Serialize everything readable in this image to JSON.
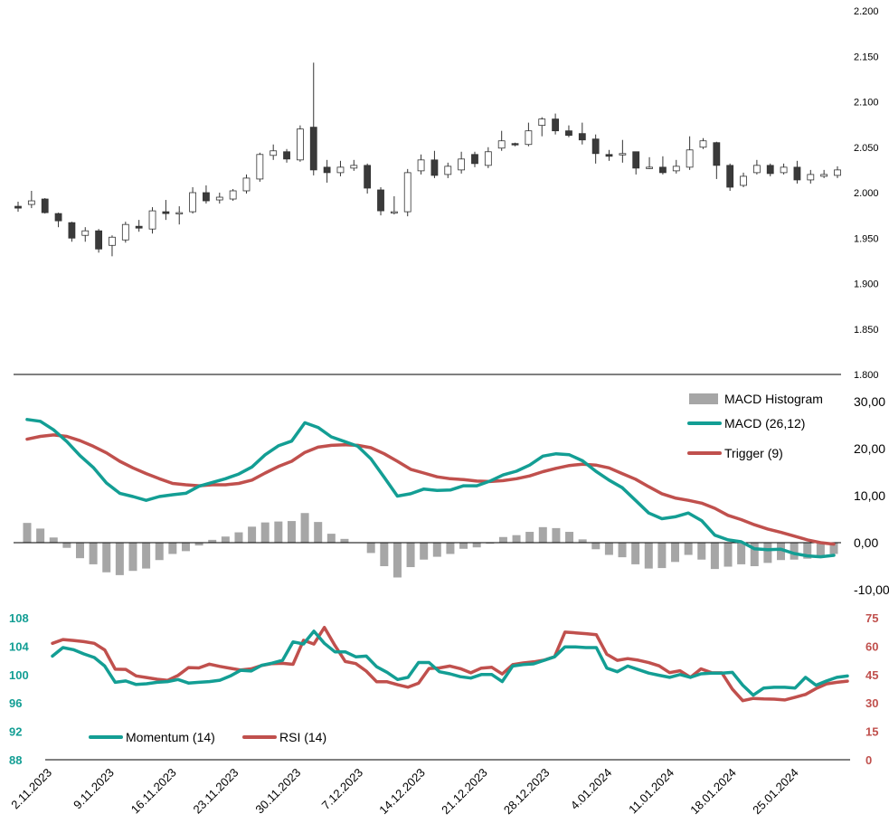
{
  "chart_data": [
    {
      "type": "candlestick",
      "yticks": [
        "1.800",
        "1.850",
        "1.900",
        "1.950",
        "2.000",
        "2.050",
        "2.100",
        "2.150",
        "2.200"
      ],
      "ylim": [
        1.8,
        2.2
      ],
      "candles": [
        {
          "o": 1.985,
          "h": 1.99,
          "l": 1.979,
          "c": 1.983
        },
        {
          "o": 1.987,
          "h": 2.002,
          "l": 1.983,
          "c": 1.991
        },
        {
          "o": 1.993,
          "h": 1.994,
          "l": 1.977,
          "c": 1.978
        },
        {
          "o": 1.977,
          "h": 1.978,
          "l": 1.962,
          "c": 1.969
        },
        {
          "o": 1.967,
          "h": 1.968,
          "l": 1.946,
          "c": 1.95
        },
        {
          "o": 1.953,
          "h": 1.962,
          "l": 1.946,
          "c": 1.958
        },
        {
          "o": 1.958,
          "h": 1.96,
          "l": 1.934,
          "c": 1.938
        },
        {
          "o": 1.942,
          "h": 1.953,
          "l": 1.93,
          "c": 1.951
        },
        {
          "o": 1.948,
          "h": 1.968,
          "l": 1.945,
          "c": 1.965
        },
        {
          "o": 1.963,
          "h": 1.97,
          "l": 1.957,
          "c": 1.961
        },
        {
          "o": 1.96,
          "h": 1.984,
          "l": 1.955,
          "c": 1.98
        },
        {
          "o": 1.979,
          "h": 1.992,
          "l": 1.97,
          "c": 1.977
        },
        {
          "o": 1.977,
          "h": 1.985,
          "l": 1.965,
          "c": 1.978
        },
        {
          "o": 1.979,
          "h": 2.006,
          "l": 1.977,
          "c": 2.0
        },
        {
          "o": 2.0,
          "h": 2.008,
          "l": 1.988,
          "c": 1.991
        },
        {
          "o": 1.992,
          "h": 2.0,
          "l": 1.988,
          "c": 1.995
        },
        {
          "o": 1.993,
          "h": 2.004,
          "l": 1.991,
          "c": 2.002
        },
        {
          "o": 2.002,
          "h": 2.02,
          "l": 1.999,
          "c": 2.016
        },
        {
          "o": 2.015,
          "h": 2.044,
          "l": 2.012,
          "c": 2.042
        },
        {
          "o": 2.041,
          "h": 2.053,
          "l": 2.036,
          "c": 2.046
        },
        {
          "o": 2.045,
          "h": 2.048,
          "l": 2.033,
          "c": 2.037
        },
        {
          "o": 2.036,
          "h": 2.074,
          "l": 2.034,
          "c": 2.07
        },
        {
          "o": 2.072,
          "h": 2.143,
          "l": 2.019,
          "c": 2.025
        },
        {
          "o": 2.028,
          "h": 2.036,
          "l": 2.011,
          "c": 2.022
        },
        {
          "o": 2.022,
          "h": 2.035,
          "l": 2.018,
          "c": 2.028
        },
        {
          "o": 2.027,
          "h": 2.036,
          "l": 2.024,
          "c": 2.03
        },
        {
          "o": 2.03,
          "h": 2.032,
          "l": 1.999,
          "c": 2.005
        },
        {
          "o": 2.003,
          "h": 2.006,
          "l": 1.975,
          "c": 1.98
        },
        {
          "o": 1.978,
          "h": 1.996,
          "l": 1.976,
          "c": 1.979
        },
        {
          "o": 1.979,
          "h": 2.026,
          "l": 1.974,
          "c": 2.022
        },
        {
          "o": 2.024,
          "h": 2.042,
          "l": 2.02,
          "c": 2.036
        },
        {
          "o": 2.036,
          "h": 2.046,
          "l": 2.016,
          "c": 2.019
        },
        {
          "o": 2.02,
          "h": 2.033,
          "l": 2.016,
          "c": 2.029
        },
        {
          "o": 2.025,
          "h": 2.045,
          "l": 2.021,
          "c": 2.037
        },
        {
          "o": 2.042,
          "h": 2.045,
          "l": 2.028,
          "c": 2.032
        },
        {
          "o": 2.03,
          "h": 2.05,
          "l": 2.027,
          "c": 2.045
        },
        {
          "o": 2.049,
          "h": 2.068,
          "l": 2.046,
          "c": 2.057
        },
        {
          "o": 2.054,
          "h": 2.055,
          "l": 2.051,
          "c": 2.053
        },
        {
          "o": 2.053,
          "h": 2.077,
          "l": 2.051,
          "c": 2.068
        },
        {
          "o": 2.074,
          "h": 2.083,
          "l": 2.062,
          "c": 2.081
        },
        {
          "o": 2.081,
          "h": 2.087,
          "l": 2.064,
          "c": 2.068
        },
        {
          "o": 2.068,
          "h": 2.074,
          "l": 2.061,
          "c": 2.063
        },
        {
          "o": 2.065,
          "h": 2.077,
          "l": 2.053,
          "c": 2.058
        },
        {
          "o": 2.059,
          "h": 2.064,
          "l": 2.032,
          "c": 2.043
        },
        {
          "o": 2.042,
          "h": 2.047,
          "l": 2.035,
          "c": 2.04
        },
        {
          "o": 2.042,
          "h": 2.058,
          "l": 2.033,
          "c": 2.043
        },
        {
          "o": 2.045,
          "h": 2.045,
          "l": 2.02,
          "c": 2.027
        },
        {
          "o": 2.028,
          "h": 2.039,
          "l": 2.026,
          "c": 2.028
        },
        {
          "o": 2.028,
          "h": 2.04,
          "l": 2.02,
          "c": 2.022
        },
        {
          "o": 2.024,
          "h": 2.036,
          "l": 2.021,
          "c": 2.029
        },
        {
          "o": 2.028,
          "h": 2.062,
          "l": 2.025,
          "c": 2.047
        },
        {
          "o": 2.05,
          "h": 2.06,
          "l": 2.048,
          "c": 2.057
        },
        {
          "o": 2.055,
          "h": 2.056,
          "l": 2.015,
          "c": 2.03
        },
        {
          "o": 2.03,
          "h": 2.032,
          "l": 2.002,
          "c": 2.006
        },
        {
          "o": 2.008,
          "h": 2.022,
          "l": 2.006,
          "c": 2.018
        },
        {
          "o": 2.022,
          "h": 2.036,
          "l": 2.02,
          "c": 2.03
        },
        {
          "o": 2.03,
          "h": 2.032,
          "l": 2.018,
          "c": 2.021
        },
        {
          "o": 2.022,
          "h": 2.032,
          "l": 2.02,
          "c": 2.028
        },
        {
          "o": 2.028,
          "h": 2.035,
          "l": 2.01,
          "c": 2.014
        },
        {
          "o": 2.014,
          "h": 2.025,
          "l": 2.01,
          "c": 2.02
        },
        {
          "o": 2.018,
          "h": 2.025,
          "l": 2.016,
          "c": 2.02
        },
        {
          "o": 2.019,
          "h": 2.029,
          "l": 2.016,
          "c": 2.025
        }
      ]
    },
    {
      "type": "macd",
      "yticks": [
        "-10,00",
        "0,00",
        "10,00",
        "20,00",
        "30,00"
      ],
      "ylim": [
        -10,
        30
      ],
      "legend": [
        "MACD Histogram",
        "MACD (26,12)",
        "Trigger (9)"
      ],
      "macd": [
        26.2,
        25.8,
        24.0,
        21.5,
        18.5,
        16.0,
        12.7,
        10.5,
        9.8,
        9.0,
        9.8,
        10.2,
        10.5,
        12.0,
        12.8,
        13.6,
        14.6,
        16.1,
        18.7,
        20.6,
        21.6,
        25.5,
        24.5,
        22.5,
        21.5,
        20.5,
        17.8,
        13.9,
        9.9,
        10.4,
        11.4,
        11.1,
        11.2,
        12.1,
        12.1,
        13.1,
        14.4,
        15.2,
        16.5,
        18.4,
        18.9,
        18.7,
        17.4,
        15.2,
        13.3,
        11.7,
        9.0,
        6.3,
        5.1,
        5.5,
        6.3,
        4.7,
        1.6,
        0.6,
        0.2,
        -1.3,
        -1.5,
        -1.4,
        -2.3,
        -2.8,
        -3.0,
        -2.7
      ],
      "trigger": [
        22.0,
        22.6,
        22.9,
        22.6,
        21.7,
        20.5,
        19.1,
        17.3,
        15.9,
        14.7,
        13.6,
        12.6,
        12.3,
        12.1,
        12.3,
        12.3,
        12.6,
        13.3,
        14.8,
        16.2,
        17.3,
        19.2,
        20.3,
        20.7,
        20.8,
        20.7,
        20.2,
        18.9,
        17.3,
        15.6,
        14.8,
        14.0,
        13.6,
        13.4,
        13.1,
        13.0,
        13.2,
        13.6,
        14.2,
        15.1,
        15.8,
        16.4,
        16.7,
        16.5,
        15.9,
        14.7,
        13.5,
        11.9,
        10.4,
        9.5,
        9.0,
        8.4,
        7.3,
        5.8,
        4.9,
        3.8,
        2.9,
        2.2,
        1.4,
        0.6,
        0.0,
        -0.3
      ],
      "histogram": [
        4.2,
        3.0,
        1.1,
        -1.1,
        -3.3,
        -4.6,
        -6.3,
        -6.9,
        -6.0,
        -5.5,
        -3.7,
        -2.4,
        -1.8,
        -0.6,
        0.6,
        1.3,
        2.2,
        3.4,
        4.3,
        4.5,
        4.6,
        6.3,
        4.4,
        1.9,
        0.8,
        0.0,
        -2.2,
        -5.0,
        -7.4,
        -5.2,
        -3.6,
        -3.0,
        -2.4,
        -1.3,
        -1.0,
        -0.2,
        1.2,
        1.6,
        2.3,
        3.3,
        3.1,
        2.3,
        0.7,
        -1.4,
        -2.6,
        -3.1,
        -4.6,
        -5.5,
        -5.4,
        -4.1,
        -2.6,
        -3.6,
        -5.6,
        -5.1,
        -4.6,
        -5.0,
        -4.3,
        -3.7,
        -3.6,
        -3.4,
        -3.0,
        -2.4
      ]
    },
    {
      "type": "line",
      "y_left_ticks": [
        "88",
        "92",
        "96",
        "100",
        "104",
        "108"
      ],
      "ylim_left": [
        88,
        108
      ],
      "y_right_ticks": [
        "0",
        "15",
        "30",
        "45",
        "60",
        "75"
      ],
      "ylim_right": [
        0,
        75
      ],
      "legend": [
        "Momentum (14)",
        "RSI (14)"
      ],
      "x_labels": [
        "2.11.2023",
        "9.11.2023",
        "16.11.2023",
        "23.11.2023",
        "30.11.2023",
        "7.12.2023",
        "14.12.2023",
        "21.12.2023",
        "28.12.2023",
        "4.01.2024",
        "11.01.2024",
        "18.01.2024",
        "25.01.2024"
      ],
      "momentum": [
        102.6,
        103.8,
        103.5,
        102.9,
        102.4,
        101.2,
        98.9,
        99.1,
        98.6,
        98.7,
        98.9,
        99.0,
        99.3,
        98.8,
        98.9,
        99.0,
        99.2,
        99.8,
        100.6,
        100.5,
        101.3,
        101.6,
        102.0,
        104.6,
        104.3,
        106.1,
        104.4,
        103.2,
        103.2,
        102.5,
        102.6,
        101.1,
        100.3,
        99.3,
        99.6,
        101.7,
        101.7,
        100.4,
        100.1,
        99.7,
        99.5,
        100.0,
        100.0,
        99.0,
        101.2,
        101.4,
        101.5,
        102.0,
        102.5,
        103.9,
        103.9,
        103.8,
        103.8,
        100.9,
        100.4,
        101.2,
        100.7,
        100.2,
        99.9,
        99.6,
        100.0,
        99.6,
        100.1,
        100.2,
        100.2,
        100.3,
        98.5,
        97.1,
        98.1,
        98.2,
        98.2,
        98.1,
        99.6,
        98.5,
        99.1,
        99.6,
        99.8
      ],
      "rsi": [
        61.5,
        63.5,
        63.0,
        62.4,
        61.5,
        58.0,
        47.8,
        47.7,
        44.3,
        43.4,
        42.5,
        41.9,
        44.5,
        48.7,
        48.5,
        50.5,
        49.3,
        48.3,
        47.4,
        48.0,
        49.8,
        50.8,
        50.9,
        50.4,
        63.1,
        61.1,
        69.9,
        60.4,
        51.9,
        50.8,
        46.8,
        41.2,
        41.2,
        39.6,
        38.3,
        40.4,
        48.2,
        48.5,
        49.5,
        48.1,
        45.9,
        48.4,
        48.8,
        45.3,
        50.2,
        51.1,
        51.7,
        52.6,
        54.4,
        67.4,
        67.0,
        66.6,
        66.0,
        55.7,
        52.5,
        53.4,
        52.6,
        51.3,
        49.6,
        46.0,
        47.0,
        43.5,
        48.0,
        46.0,
        45.9,
        37.3,
        31.2,
        32.4,
        32.1,
        32.0,
        31.6,
        33.0,
        34.5,
        37.6,
        40.1,
        40.9,
        41.5
      ]
    }
  ]
}
